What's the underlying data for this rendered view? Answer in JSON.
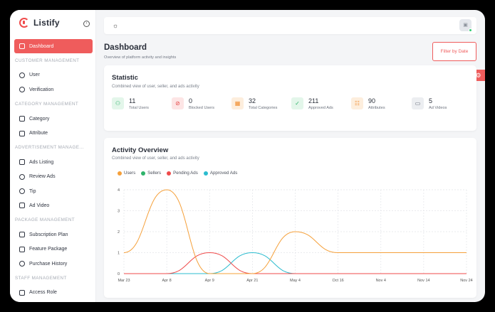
{
  "app": {
    "name": "Listify"
  },
  "sidebar": {
    "items": [
      {
        "type": "item",
        "label": "Dashboard",
        "icon": "grid-icon",
        "active": true
      },
      {
        "type": "section",
        "label": "CUSTOMER MANAGEMENT"
      },
      {
        "type": "item",
        "label": "User",
        "icon": "user-icon"
      },
      {
        "type": "item",
        "label": "Verification",
        "icon": "verification-icon"
      },
      {
        "type": "section",
        "label": "CATEGORY MANAGEMENT"
      },
      {
        "type": "item",
        "label": "Category",
        "icon": "category-icon"
      },
      {
        "type": "item",
        "label": "Attribute",
        "icon": "list-icon"
      },
      {
        "type": "section",
        "label": "ADVERTISEMENT MANAGE..."
      },
      {
        "type": "item",
        "label": "Ads Listing",
        "icon": "listing-icon"
      },
      {
        "type": "item",
        "label": "Review Ads",
        "icon": "review-icon"
      },
      {
        "type": "item",
        "label": "Tip",
        "icon": "tip-icon"
      },
      {
        "type": "item",
        "label": "Ad Video",
        "icon": "video-icon"
      },
      {
        "type": "section",
        "label": "PACKAGE MANAGEMENT"
      },
      {
        "type": "item",
        "label": "Subscription Plan",
        "icon": "subscription-icon"
      },
      {
        "type": "item",
        "label": "Feature Package",
        "icon": "package-icon"
      },
      {
        "type": "item",
        "label": "Purchase History",
        "icon": "history-icon"
      },
      {
        "type": "section",
        "label": "STAFF MANAGEMENT"
      },
      {
        "type": "item",
        "label": "Access Role",
        "icon": "shield-icon"
      }
    ]
  },
  "header": {
    "title": "Dashboard",
    "subtitle": "Overview of platform activity and insights",
    "filter_label": "Filter by Date"
  },
  "statistic": {
    "title": "Statistic",
    "subtitle": "Combined view of user, seller, and ads activity",
    "items": [
      {
        "value": "11",
        "label": "Total Users",
        "icon": "users-icon",
        "color": "#2fb36b",
        "bg": "#e3f6ea"
      },
      {
        "value": "0",
        "label": "Blocked Users",
        "icon": "blocked-icon",
        "color": "#e54848",
        "bg": "#fde5e5"
      },
      {
        "value": "32",
        "label": "Total Categories",
        "icon": "categories-icon",
        "color": "#f08a2a",
        "bg": "#fdeedd"
      },
      {
        "value": "211",
        "label": "Approved Ads",
        "icon": "check-icon",
        "color": "#2fb36b",
        "bg": "#e3f6ea"
      },
      {
        "value": "90",
        "label": "Attributes",
        "icon": "attributes-icon",
        "color": "#f08a2a",
        "bg": "#fdeedd"
      },
      {
        "value": "5",
        "label": "Ad Videos",
        "icon": "video-icon",
        "color": "#5d6470",
        "bg": "#eceef1"
      }
    ]
  },
  "activity": {
    "title": "Activity Overview",
    "subtitle": "Combined view of user, seller, and ads activity"
  },
  "chart_data": {
    "type": "line",
    "categories": [
      "Mar 23",
      "Apr 8",
      "Apr 9",
      "Apr 21",
      "May 4",
      "Oct 16",
      "Nov 4",
      "Nov 14",
      "Nov 24"
    ],
    "ylim": [
      0,
      4
    ],
    "yticks": [
      "0",
      "1",
      "2",
      "3",
      "4"
    ],
    "grid": true,
    "legend": "top-left",
    "series": [
      {
        "name": "Users",
        "color": "#f5a03a",
        "values": [
          1,
          4,
          0,
          0,
          2,
          1,
          1,
          1,
          1
        ]
      },
      {
        "name": "Sellers",
        "color": "#2fb36b",
        "values": [
          0,
          0,
          0,
          0,
          0,
          0,
          0,
          0,
          0
        ]
      },
      {
        "name": "Pending Ads",
        "color": "#ef4b4b",
        "values": [
          0,
          0,
          1,
          0,
          0,
          0,
          0,
          0,
          0
        ]
      },
      {
        "name": "Approved Ads",
        "color": "#2bbccf",
        "values": [
          0,
          0,
          0,
          1,
          0,
          0,
          0,
          0,
          0
        ]
      }
    ]
  }
}
